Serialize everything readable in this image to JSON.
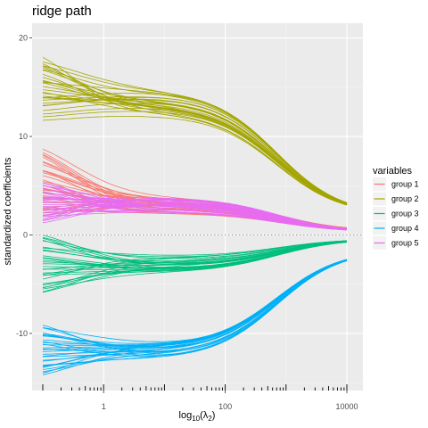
{
  "chart_data": {
    "type": "line",
    "title": "ridge path",
    "xlabel": "log10(λ2)",
    "ylabel": "standardized coefficients",
    "x_scale": "log10",
    "xlim": [
      0.1,
      10000
    ],
    "ylim": [
      -15.8,
      21.5
    ],
    "x_ticks": [
      1,
      100,
      10000
    ],
    "x_tick_labels": [
      "1",
      "100",
      "10000"
    ],
    "y_ticks": [
      -10,
      0,
      10,
      20
    ],
    "y_tick_labels": [
      "-10",
      "0",
      "10",
      "20"
    ],
    "grid": true,
    "reference_line": {
      "y": 0,
      "style": "dotted"
    },
    "legend": {
      "title": "variables",
      "position": "right"
    },
    "series": [
      {
        "name": "group 1",
        "color": "#F8766D",
        "lines": 30,
        "x": [
          0.1,
          0.3,
          1,
          3,
          10,
          30,
          100,
          300,
          1000,
          3000,
          10000
        ],
        "start_range": [
          1.5,
          10.5
        ],
        "plateau": 3.0,
        "end_value": 0.4
      },
      {
        "name": "group 2",
        "color": "#A3A500",
        "lines": 30,
        "x": [
          0.1,
          0.3,
          1,
          3,
          10,
          30,
          100,
          300,
          1000,
          3000,
          10000
        ],
        "start_range": [
          11.5,
          19.5
        ],
        "plateau": 13.5,
        "end_value": 2.0
      },
      {
        "name": "group 3",
        "color": "#00BF7D",
        "lines": 30,
        "x": [
          0.1,
          0.3,
          1,
          3,
          10,
          30,
          100,
          300,
          1000,
          3000,
          10000
        ],
        "start_range": [
          -7.0,
          1.0
        ],
        "plateau": -3.0,
        "end_value": -0.4
      },
      {
        "name": "group 4",
        "color": "#00B0F6",
        "lines": 30,
        "x": [
          0.1,
          0.3,
          1,
          3,
          10,
          30,
          100,
          300,
          1000,
          3000,
          10000
        ],
        "start_range": [
          -15.0,
          -8.3
        ],
        "plateau": -12.0,
        "end_value": -1.5
      },
      {
        "name": "group 5",
        "color": "#E76BF3",
        "lines": 30,
        "x": [
          0.1,
          0.3,
          1,
          3,
          10,
          30,
          100,
          300,
          1000,
          3000,
          10000
        ],
        "start_range": [
          0.5,
          6.2
        ],
        "plateau": 3.1,
        "end_value": 0.3
      }
    ]
  }
}
